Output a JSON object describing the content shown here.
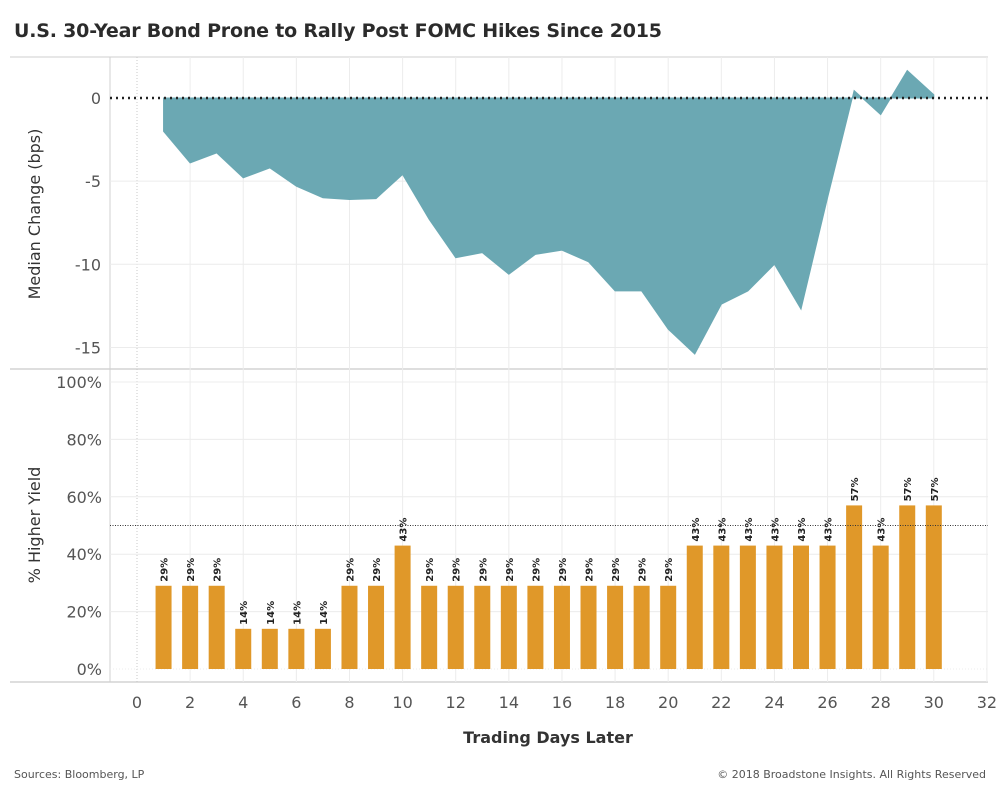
{
  "title": "U.S. 30-Year Bond Prone to Rally Post FOMC Hikes Since 2015",
  "source": "Sources: Bloomberg, LP",
  "copyright": "© 2018 Broadstone Insights. All Rights Reserved",
  "colors": {
    "area": "#6ba8b3",
    "bar": "#e09829",
    "grid": "#ececec",
    "axis_text": "#555555"
  },
  "chart_data": [
    {
      "type": "area",
      "ylabel": "Median Change (bps)",
      "ylim": [
        -16,
        2.5
      ],
      "yticks": [
        0,
        -5,
        -10,
        -15
      ],
      "reference_line": 0,
      "x": [
        1,
        2,
        3,
        4,
        5,
        6,
        7,
        8,
        9,
        10,
        11,
        12,
        13,
        14,
        15,
        16,
        17,
        18,
        19,
        20,
        21,
        22,
        23,
        24,
        25,
        26,
        27,
        28,
        29,
        30
      ],
      "values": [
        -2,
        -3.9,
        -3.3,
        -4.8,
        -4.2,
        -5.3,
        -6.0,
        -6.1,
        -6.05,
        -4.6,
        -7.3,
        -9.6,
        -9.3,
        -10.6,
        -9.4,
        -9.15,
        -9.85,
        -11.6,
        -11.6,
        -13.9,
        -15.4,
        -12.4,
        -11.6,
        -10.0,
        -12.7,
        -6.0,
        0.45,
        -1.0,
        1.65,
        0.2
      ]
    },
    {
      "type": "bar",
      "ylabel": "% Higher Yield",
      "xlabel": "Trading Days Later",
      "ylim": [
        0,
        100
      ],
      "yticks": [
        "0%",
        "20%",
        "40%",
        "60%",
        "80%",
        "100%"
      ],
      "reference_line": 50,
      "x": [
        1,
        2,
        3,
        4,
        5,
        6,
        7,
        8,
        9,
        10,
        11,
        12,
        13,
        14,
        15,
        16,
        17,
        18,
        19,
        20,
        21,
        22,
        23,
        24,
        25,
        26,
        27,
        28,
        29,
        30
      ],
      "values": [
        29,
        29,
        29,
        14,
        14,
        14,
        14,
        29,
        29,
        43,
        29,
        29,
        29,
        29,
        29,
        29,
        29,
        29,
        29,
        29,
        43,
        43,
        43,
        43,
        43,
        43,
        57,
        43,
        57,
        57
      ],
      "labels": [
        "29%",
        "29%",
        "29%",
        "14%",
        "14%",
        "14%",
        "14%",
        "29%",
        "29%",
        "43%",
        "29%",
        "29%",
        "29%",
        "29%",
        "29%",
        "29%",
        "29%",
        "29%",
        "29%",
        "29%",
        "43%",
        "43%",
        "43%",
        "43%",
        "43%",
        "43%",
        "57%",
        "43%",
        "57%",
        "57%"
      ],
      "xticks": [
        "0",
        "2",
        "4",
        "6",
        "8",
        "10",
        "12",
        "14",
        "16",
        "18",
        "20",
        "22",
        "24",
        "26",
        "28",
        "30",
        "32"
      ]
    }
  ]
}
